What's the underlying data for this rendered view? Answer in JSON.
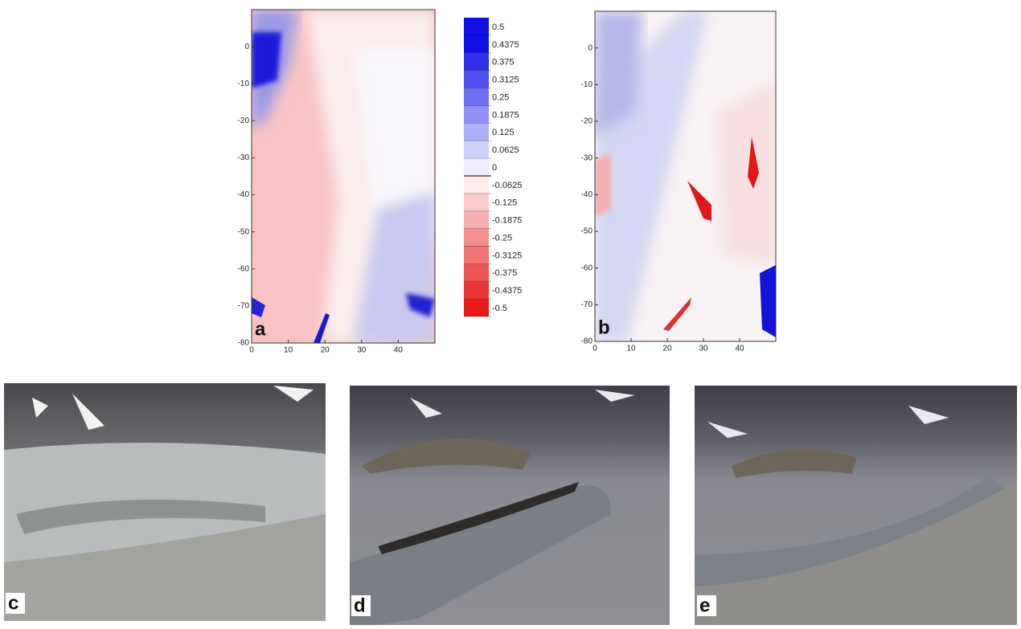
{
  "maps": [
    {
      "label": "a",
      "xlim": [
        0,
        50
      ],
      "ylim": [
        -80,
        10
      ],
      "xticks": [
        0,
        10,
        20,
        30,
        40
      ],
      "yticks": [
        0,
        -10,
        -20,
        -30,
        -40,
        -50,
        -60,
        -70,
        -80
      ]
    },
    {
      "label": "b",
      "xlim": [
        0,
        50
      ],
      "ylim": [
        -80,
        10
      ],
      "xticks": [
        0,
        10,
        20,
        30,
        40
      ],
      "yticks": [
        0,
        -10,
        -20,
        -30,
        -40,
        -50,
        -60,
        -70,
        -80
      ]
    }
  ],
  "colorbar": {
    "ticks": [
      0.5,
      0.4375,
      0.375,
      0.3125,
      0.25,
      0.1875,
      0.125,
      0.0625,
      0,
      -0.0625,
      -0.125,
      -0.1875,
      -0.25,
      -0.3125,
      -0.375,
      -0.4375,
      -0.5
    ],
    "colors": [
      "#1010e8",
      "#3030ec",
      "#5050f0",
      "#7070f2",
      "#9090f5",
      "#b0b0f8",
      "#cfcffb",
      "#ececfe",
      "#fdeaea",
      "#f9cccc",
      "#f6aeae",
      "#f39090",
      "#f07272",
      "#ed5454",
      "#ea3636",
      "#e81818"
    ]
  },
  "photos": [
    {
      "label": "c"
    },
    {
      "label": "d"
    },
    {
      "label": "e"
    }
  ]
}
